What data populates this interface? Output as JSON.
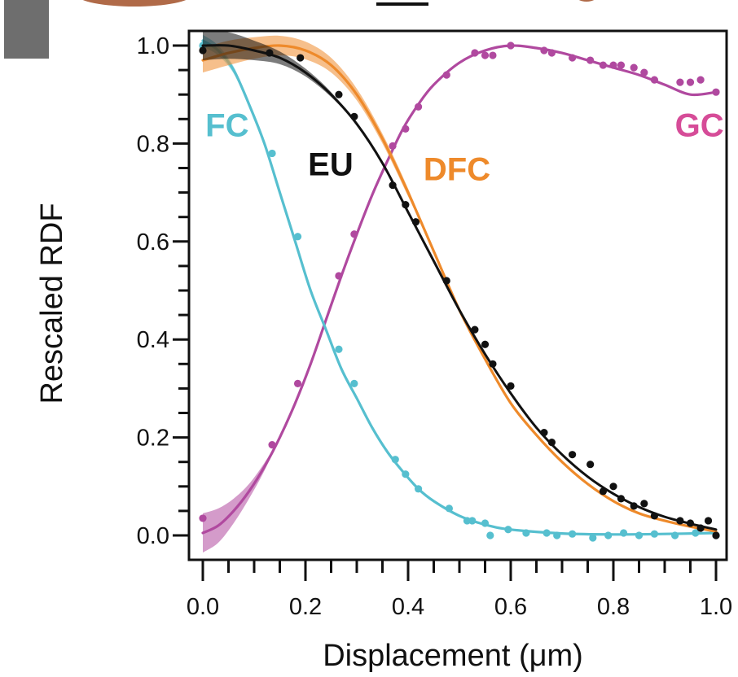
{
  "chart_data": {
    "type": "line",
    "title": "",
    "xlabel": "Displacement (μm)",
    "ylabel": "Rescaled RDF",
    "xlim": [
      0.0,
      1.0
    ],
    "ylim": [
      0.0,
      1.0
    ],
    "xticks": [
      "0.0",
      "0.2",
      "0.4",
      "0.6",
      "0.8",
      "1.0"
    ],
    "yticks": [
      "0.0",
      "0.2",
      "0.4",
      "0.6",
      "0.8",
      "1.0"
    ],
    "grid": false,
    "series": [
      {
        "name": "FC",
        "color": "#56BFCF",
        "fit_x": [
          0.0,
          0.03,
          0.06,
          0.09,
          0.12,
          0.15,
          0.18,
          0.21,
          0.24,
          0.27,
          0.3,
          0.33,
          0.36,
          0.39,
          0.42,
          0.45,
          0.5,
          0.55,
          0.6,
          0.7,
          0.8,
          0.9,
          1.0
        ],
        "fit_y": [
          1.01,
          0.99,
          0.95,
          0.88,
          0.8,
          0.7,
          0.6,
          0.5,
          0.42,
          0.34,
          0.28,
          0.22,
          0.17,
          0.13,
          0.095,
          0.07,
          0.04,
          0.022,
          0.012,
          0.004,
          0.002,
          0.003,
          0.005
        ],
        "band_x": [
          0.0,
          0.03,
          0.06,
          0.09
        ],
        "band_width": [
          0.012,
          0.01,
          0.007,
          0.004
        ],
        "points_x": [
          0.0,
          0.135,
          0.185,
          0.265,
          0.295,
          0.375,
          0.395,
          0.42,
          0.48,
          0.515,
          0.525,
          0.55,
          0.56,
          0.595,
          0.63,
          0.67,
          0.69,
          0.72,
          0.76,
          0.79,
          0.82,
          0.85,
          0.88,
          0.92,
          0.96,
          1.0
        ],
        "points_y": [
          1.0,
          0.78,
          0.61,
          0.38,
          0.31,
          0.155,
          0.125,
          0.095,
          0.055,
          0.03,
          0.03,
          0.025,
          0.0,
          0.012,
          0.005,
          0.005,
          0.0,
          0.003,
          -0.005,
          0.0,
          0.005,
          0.0,
          0.003,
          0.0,
          0.005,
          0.0
        ]
      },
      {
        "name": "EU",
        "color": "#111111",
        "fit_x": [
          0.0,
          0.05,
          0.1,
          0.15,
          0.2,
          0.25,
          0.3,
          0.35,
          0.4,
          0.45,
          0.5,
          0.55,
          0.6,
          0.65,
          0.7,
          0.75,
          0.8,
          0.85,
          0.9,
          0.95,
          1.0
        ],
        "fit_y": [
          1.0,
          1.0,
          0.99,
          0.975,
          0.945,
          0.9,
          0.84,
          0.76,
          0.66,
          0.56,
          0.46,
          0.37,
          0.29,
          0.22,
          0.165,
          0.12,
          0.085,
          0.058,
          0.038,
          0.024,
          0.012
        ],
        "band_x": [
          0.0,
          0.05,
          0.1,
          0.15,
          0.2,
          0.25
        ],
        "band_width": [
          0.03,
          0.027,
          0.02,
          0.013,
          0.008,
          0.005
        ],
        "points_x": [
          0.0,
          0.13,
          0.19,
          0.265,
          0.295,
          0.37,
          0.395,
          0.415,
          0.475,
          0.53,
          0.55,
          0.565,
          0.6,
          0.665,
          0.68,
          0.72,
          0.755,
          0.78,
          0.8,
          0.815,
          0.84,
          0.86,
          0.88,
          0.93,
          0.95,
          0.97,
          0.985,
          1.0
        ],
        "points_y": [
          0.99,
          0.985,
          0.975,
          0.9,
          0.855,
          0.715,
          0.675,
          0.64,
          0.52,
          0.42,
          0.39,
          0.35,
          0.305,
          0.21,
          0.19,
          0.165,
          0.145,
          0.09,
          0.1,
          0.075,
          0.06,
          0.065,
          0.04,
          0.03,
          0.025,
          0.015,
          0.03,
          0.0
        ]
      },
      {
        "name": "DFC",
        "color": "#EE8A2B",
        "fit_x": [
          0.0,
          0.05,
          0.1,
          0.15,
          0.2,
          0.25,
          0.3,
          0.35,
          0.4,
          0.45,
          0.5,
          0.55,
          0.6,
          0.65,
          0.7,
          0.75,
          0.8,
          0.85,
          0.9,
          0.95,
          1.0
        ],
        "fit_y": [
          0.97,
          0.985,
          0.995,
          1.0,
          0.99,
          0.96,
          0.9,
          0.81,
          0.7,
          0.58,
          0.46,
          0.36,
          0.27,
          0.205,
          0.15,
          0.105,
          0.07,
          0.045,
          0.03,
          0.018,
          0.008
        ],
        "band_x": [
          0.0,
          0.05,
          0.1,
          0.15,
          0.2,
          0.25,
          0.3,
          0.35,
          0.4
        ],
        "band_width": [
          0.025,
          0.025,
          0.022,
          0.02,
          0.018,
          0.015,
          0.012,
          0.01,
          0.008
        ]
      },
      {
        "name": "GC",
        "color": "#B0499F",
        "label_color": "#D64C98",
        "fit_x": [
          0.0,
          0.03,
          0.06,
          0.09,
          0.12,
          0.15,
          0.18,
          0.21,
          0.24,
          0.27,
          0.3,
          0.33,
          0.36,
          0.39,
          0.42,
          0.45,
          0.5,
          0.55,
          0.6,
          0.65,
          0.7,
          0.75,
          0.8,
          0.85,
          0.9,
          0.95,
          1.0
        ],
        "fit_y": [
          0.005,
          0.02,
          0.05,
          0.09,
          0.14,
          0.2,
          0.27,
          0.35,
          0.44,
          0.53,
          0.615,
          0.695,
          0.765,
          0.83,
          0.88,
          0.92,
          0.965,
          0.99,
          1.0,
          0.995,
          0.985,
          0.97,
          0.955,
          0.94,
          0.92,
          0.9,
          0.905
        ],
        "band_x": [
          0.0,
          0.03,
          0.06,
          0.09,
          0.12
        ],
        "band_width": [
          0.04,
          0.035,
          0.025,
          0.015,
          0.008
        ],
        "points_x": [
          0.0,
          0.135,
          0.185,
          0.265,
          0.295,
          0.37,
          0.395,
          0.42,
          0.475,
          0.53,
          0.55,
          0.565,
          0.6,
          0.665,
          0.68,
          0.72,
          0.755,
          0.78,
          0.8,
          0.815,
          0.84,
          0.86,
          0.88,
          0.93,
          0.95,
          0.97,
          1.0
        ],
        "points_y": [
          0.035,
          0.185,
          0.31,
          0.53,
          0.615,
          0.795,
          0.83,
          0.875,
          0.94,
          0.985,
          0.98,
          0.98,
          1.0,
          0.99,
          0.985,
          0.975,
          0.97,
          0.96,
          0.96,
          0.96,
          0.955,
          0.945,
          0.93,
          0.925,
          0.925,
          0.93,
          0.905
        ]
      }
    ],
    "labels": [
      {
        "text": "FC",
        "series": "FC",
        "x": 0.005,
        "y": 0.815
      },
      {
        "text": "EU",
        "series": "EU",
        "x": 0.205,
        "y": 0.735
      },
      {
        "text": "DFC",
        "series": "DFC",
        "x": 0.43,
        "y": 0.725
      },
      {
        "text": "GC",
        "series": "GC",
        "x": 0.92,
        "y": 0.815
      }
    ]
  }
}
